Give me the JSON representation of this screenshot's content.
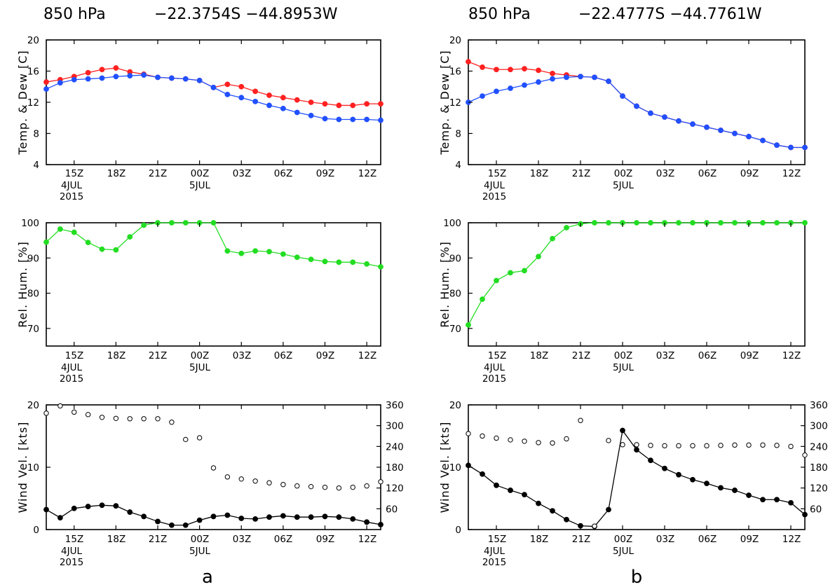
{
  "panels": [
    {
      "letter": "a",
      "header": {
        "level": "850 hPa",
        "coords": "−22.3754S  −44.8953W"
      },
      "time_ticks": [
        "15Z",
        "18Z",
        "21Z",
        "00Z",
        "03Z",
        "06Z",
        "09Z",
        "12Z"
      ],
      "date_labels": {
        "day1": "4JUL",
        "year": "2015",
        "day2": "5JUL"
      },
      "temp": {
        "ylabel": "Temp. & Dew [C]",
        "yticks": [
          "4",
          "8",
          "12",
          "16",
          "20"
        ],
        "ylim": [
          4,
          20
        ],
        "temperature": [
          14.6,
          14.9,
          15.3,
          15.8,
          16.2,
          16.4,
          15.9,
          15.6,
          15.2,
          15.1,
          15.0,
          14.8,
          13.9,
          14.3,
          14.0,
          13.4,
          12.9,
          12.6,
          12.3,
          12.0,
          11.8,
          11.6,
          11.6,
          11.8,
          11.8
        ],
        "dewpoint": [
          13.7,
          14.5,
          14.9,
          15.0,
          15.1,
          15.3,
          15.4,
          15.5,
          15.2,
          15.1,
          15.0,
          14.8,
          13.9,
          13.0,
          12.6,
          12.1,
          11.6,
          11.2,
          10.7,
          10.3,
          9.9,
          9.8,
          9.8,
          9.8,
          9.7
        ]
      },
      "rh": {
        "ylabel": "Rel. Hum. [%]",
        "yticks": [
          "70",
          "80",
          "90",
          "100"
        ],
        "ylim": [
          65,
          100
        ],
        "values": [
          94.5,
          98.2,
          97.3,
          94.4,
          92.5,
          92.3,
          96.0,
          99.3,
          100,
          100,
          100,
          100,
          100,
          92.0,
          91.3,
          92.0,
          91.8,
          91.1,
          90.2,
          89.6,
          89.0,
          88.8,
          88.8,
          88.3,
          87.5
        ]
      },
      "wind": {
        "ylabel": "Wind Vel. [kts]",
        "yticks": [
          "0",
          "10",
          "20"
        ],
        "ylim": [
          0,
          20
        ],
        "y2ticks": [
          "60",
          "120",
          "180",
          "240",
          "300",
          "360"
        ],
        "y2lim": [
          0,
          360
        ],
        "speed": [
          3.2,
          1.9,
          3.4,
          3.7,
          3.9,
          3.8,
          2.8,
          2.1,
          1.3,
          0.7,
          0.7,
          1.5,
          2.1,
          2.3,
          1.8,
          1.7,
          2.0,
          2.2,
          2.0,
          2.0,
          2.1,
          2.0,
          1.7,
          1.2,
          0.8
        ],
        "direction": [
          336,
          357,
          339,
          332,
          324,
          321,
          320,
          320,
          320,
          310,
          260,
          265,
          178,
          152,
          146,
          140,
          135,
          130,
          126,
          124,
          122,
          120,
          122,
          126,
          138
        ]
      }
    },
    {
      "letter": "b",
      "header": {
        "level": "850 hPa",
        "coords": "−22.4777S  −44.7761W"
      },
      "time_ticks": [
        "15Z",
        "18Z",
        "21Z",
        "00Z",
        "03Z",
        "06Z",
        "09Z",
        "12Z"
      ],
      "date_labels": {
        "day1": "4JUL",
        "year": "2015",
        "day2": "5JUL"
      },
      "temp": {
        "ylabel": "Temp. & Dew [C]",
        "yticks": [
          "4",
          "8",
          "12",
          "16",
          "20"
        ],
        "ylim": [
          4,
          20
        ],
        "temperature": [
          17.2,
          16.5,
          16.2,
          16.2,
          16.3,
          16.1,
          15.7,
          15.5,
          15.3,
          15.2,
          14.7,
          12.8,
          11.5,
          10.6,
          10.1,
          9.6,
          9.2,
          8.8,
          8.4,
          8.0,
          7.6,
          7.1,
          6.5,
          6.2,
          6.2
        ],
        "dewpoint": [
          12.0,
          12.8,
          13.4,
          13.8,
          14.2,
          14.6,
          15.0,
          15.2,
          15.3,
          15.2,
          14.7,
          12.8,
          11.5,
          10.6,
          10.1,
          9.6,
          9.2,
          8.8,
          8.4,
          8.0,
          7.6,
          7.1,
          6.5,
          6.2,
          6.2
        ]
      },
      "rh": {
        "ylabel": "Rel. Hum. [%]",
        "yticks": [
          "70",
          "80",
          "90",
          "100"
        ],
        "ylim": [
          65,
          100
        ],
        "values": [
          71,
          78.3,
          83.6,
          85.8,
          86.4,
          90.4,
          95.5,
          98.6,
          99.7,
          100,
          100,
          100,
          100,
          100,
          100,
          100,
          100,
          100,
          100,
          100,
          100,
          100,
          100,
          100,
          100
        ]
      },
      "wind": {
        "ylabel": "Wind Vel. [kts]",
        "yticks": [
          "0",
          "10",
          "20"
        ],
        "ylim": [
          0,
          20
        ],
        "y2ticks": [
          "60",
          "120",
          "180",
          "240",
          "300",
          "360"
        ],
        "y2lim": [
          0,
          360
        ],
        "speed": [
          10.3,
          8.9,
          7.1,
          6.3,
          5.6,
          4.2,
          3.0,
          1.6,
          0.6,
          0.5,
          3.2,
          15.9,
          12.8,
          11.1,
          9.8,
          8.8,
          8.0,
          7.4,
          6.7,
          6.3,
          5.5,
          4.8,
          4.8,
          4.3,
          2.4
        ],
        "direction": [
          277,
          270,
          264,
          259,
          255,
          251,
          250,
          262,
          315,
          10,
          257,
          245,
          245,
          243,
          242,
          242,
          242,
          242,
          243,
          244,
          244,
          244,
          243,
          240,
          215
        ]
      }
    }
  ],
  "chart_data": [
    {
      "type": "line",
      "panel": "a",
      "title": "850 hPa  −22.3754S −44.8953W",
      "x": [
        "13Z",
        "14Z",
        "15Z",
        "16Z",
        "17Z",
        "18Z",
        "19Z",
        "20Z",
        "21Z",
        "22Z",
        "23Z",
        "00Z",
        "01Z",
        "02Z",
        "03Z",
        "04Z",
        "05Z",
        "06Z",
        "07Z",
        "08Z",
        "09Z",
        "10Z",
        "11Z",
        "12Z",
        "13Z"
      ],
      "ylabel": "Temp. & Dew [C]",
      "ylim": [
        4,
        20
      ],
      "series": [
        {
          "color": "#ff2020",
          "values": [
            14.6,
            14.9,
            15.3,
            15.8,
            16.2,
            16.4,
            15.9,
            15.6,
            15.2,
            15.1,
            15.0,
            14.8,
            13.9,
            14.3,
            14.0,
            13.4,
            12.9,
            12.6,
            12.3,
            12.0,
            11.8,
            11.6,
            11.6,
            11.8,
            11.8
          ]
        },
        {
          "color": "#2050ff",
          "values": [
            13.7,
            14.5,
            14.9,
            15.0,
            15.1,
            15.3,
            15.4,
            15.5,
            15.2,
            15.1,
            15.0,
            14.8,
            13.9,
            13.0,
            12.6,
            12.1,
            11.6,
            11.2,
            10.7,
            10.3,
            9.9,
            9.8,
            9.8,
            9.8,
            9.7
          ]
        }
      ]
    },
    {
      "type": "line",
      "panel": "b",
      "title": "850 hPa  −22.4777S −44.7761W",
      "x": [
        "13Z",
        "14Z",
        "15Z",
        "16Z",
        "17Z",
        "18Z",
        "19Z",
        "20Z",
        "21Z",
        "22Z",
        "23Z",
        "00Z",
        "01Z",
        "02Z",
        "03Z",
        "04Z",
        "05Z",
        "06Z",
        "07Z",
        "08Z",
        "09Z",
        "10Z",
        "11Z",
        "12Z",
        "13Z"
      ],
      "ylabel": "Temp. & Dew [C]",
      "ylim": [
        4,
        20
      ],
      "series": [
        {
          "color": "#ff2020",
          "values": [
            17.2,
            16.5,
            16.2,
            16.2,
            16.3,
            16.1,
            15.7,
            15.5,
            15.3,
            15.2,
            14.7,
            12.8,
            11.5,
            10.6,
            10.1,
            9.6,
            9.2,
            8.8,
            8.4,
            8.0,
            7.6,
            7.1,
            6.5,
            6.2,
            6.2
          ]
        },
        {
          "color": "#2050ff",
          "values": [
            12.0,
            12.8,
            13.4,
            13.8,
            14.2,
            14.6,
            15.0,
            15.2,
            15.3,
            15.2,
            14.7,
            12.8,
            11.5,
            10.6,
            10.1,
            9.6,
            9.2,
            8.8,
            8.4,
            8.0,
            7.6,
            7.1,
            6.5,
            6.2,
            6.2
          ]
        }
      ]
    }
  ],
  "colors": {
    "temperature": "#ff2020",
    "dewpoint": "#2050ff",
    "humidity": "#22dd22",
    "wind": "#000000"
  }
}
